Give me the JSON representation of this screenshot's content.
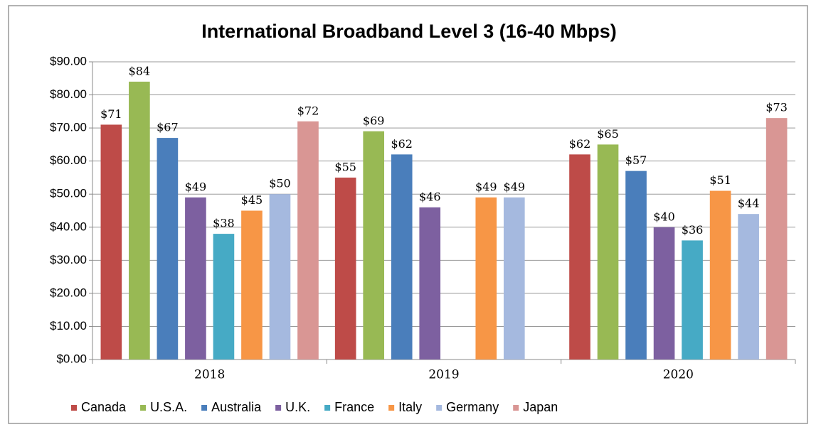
{
  "chart_data": {
    "type": "bar",
    "title": "International Broadband Level 3 (16-40 Mbps)",
    "categories": [
      "2018",
      "2019",
      "2020"
    ],
    "series": [
      {
        "name": "Canada",
        "color": "#be4b48",
        "values": [
          71,
          55,
          62
        ],
        "value_labels": [
          "$71",
          "$55",
          "$62"
        ]
      },
      {
        "name": "U.S.A.",
        "color": "#98b954",
        "values": [
          84,
          69,
          65
        ],
        "value_labels": [
          "$84",
          "$69",
          "$65"
        ]
      },
      {
        "name": "Australia",
        "color": "#4a7ebb",
        "values": [
          67,
          62,
          57
        ],
        "value_labels": [
          "$67",
          "$62",
          "$57"
        ]
      },
      {
        "name": "U.K.",
        "color": "#7d60a0",
        "values": [
          49,
          46,
          40
        ],
        "value_labels": [
          "$49",
          "$46",
          "$40"
        ]
      },
      {
        "name": "France",
        "color": "#46aac5",
        "values": [
          38,
          null,
          36
        ],
        "value_labels": [
          "$38",
          null,
          "$36"
        ]
      },
      {
        "name": "Italy",
        "color": "#f79646",
        "values": [
          45,
          49,
          51
        ],
        "value_labels": [
          "$45",
          "$49",
          "$51"
        ]
      },
      {
        "name": "Germany",
        "color": "#a5b9df",
        "values": [
          50,
          49,
          44
        ],
        "value_labels": [
          "$50",
          "$49",
          "$44"
        ]
      },
      {
        "name": "Japan",
        "color": "#d99694",
        "values": [
          72,
          null,
          73
        ],
        "value_labels": [
          "$72",
          null,
          "$73"
        ]
      }
    ],
    "ylim": [
      0,
      90
    ],
    "yticks": [
      {
        "value": 0,
        "label": "$0.00"
      },
      {
        "value": 10,
        "label": "$10.00"
      },
      {
        "value": 20,
        "label": "$20.00"
      },
      {
        "value": 30,
        "label": "$30.00"
      },
      {
        "value": 40,
        "label": "$40.00"
      },
      {
        "value": 50,
        "label": "$50.00"
      },
      {
        "value": 60,
        "label": "$60.00"
      },
      {
        "value": 70,
        "label": "$70.00"
      },
      {
        "value": 80,
        "label": "$80.00"
      },
      {
        "value": 90,
        "label": "$90.00"
      }
    ],
    "grid": true,
    "legend": "bottom"
  }
}
